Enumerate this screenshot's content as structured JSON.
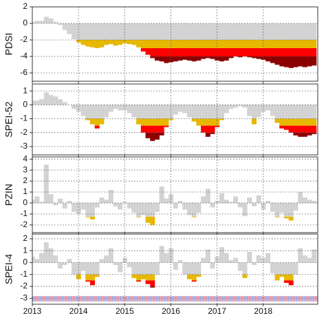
{
  "chart_data": [
    {
      "type": "bar",
      "ylabel": "PDSI",
      "x": [
        2013.0,
        2013.1,
        2013.2,
        2013.3,
        2013.4,
        2013.5,
        2013.6,
        2013.7,
        2013.8,
        2013.9,
        2014.0,
        2014.1,
        2014.2,
        2014.3,
        2014.4,
        2014.5,
        2014.6,
        2014.7,
        2014.8,
        2014.9,
        2015.0,
        2015.1,
        2015.2,
        2015.3,
        2015.4,
        2015.5,
        2015.6,
        2015.7,
        2015.8,
        2015.9,
        2016.0,
        2016.1,
        2016.2,
        2016.3,
        2016.4,
        2016.5,
        2016.6,
        2016.7,
        2016.8,
        2016.9,
        2017.0,
        2017.1,
        2017.2,
        2017.3,
        2017.4,
        2017.5,
        2017.6,
        2017.7,
        2017.8,
        2017.9,
        2018.0,
        2018.1,
        2018.2,
        2018.3,
        2018.4,
        2018.5,
        2018.6,
        2018.7,
        2018.8,
        2018.9,
        2019.0,
        2019.1
      ],
      "values": [
        0.2,
        0.3,
        0.3,
        0.8,
        0.6,
        0.2,
        -0.2,
        -0.8,
        -1.3,
        -1.9,
        -2.3,
        -2.6,
        -2.8,
        -2.9,
        -3.0,
        -2.9,
        -2.6,
        -2.5,
        -2.7,
        -2.6,
        -2.4,
        -2.5,
        -2.6,
        -2.9,
        -3.4,
        -3.8,
        -4.2,
        -4.5,
        -4.6,
        -4.8,
        -4.7,
        -4.6,
        -4.5,
        -4.4,
        -4.5,
        -4.6,
        -4.5,
        -4.3,
        -4.2,
        -4.3,
        -4.5,
        -4.6,
        -4.5,
        -4.2,
        -4.0,
        -4.1,
        -4.0,
        -4.1,
        -4.2,
        -4.3,
        -4.4,
        -4.6,
        -4.8,
        -5.0,
        -5.2,
        -5.3,
        -5.4,
        -5.3,
        -5.2,
        -5.3,
        -5.2,
        -5.1
      ],
      "levels": [
        -2,
        -3,
        -4
      ],
      "colors": [
        "#d3d3d3",
        "#e8b800",
        "#ff0000",
        "#8b0000"
      ],
      "xlim": [
        2013,
        2019.18
      ],
      "xticks": [
        2013,
        2014,
        2015,
        2016,
        2017,
        2018
      ],
      "ylim": [
        -7,
        2
      ],
      "yticks": [
        2,
        0,
        -2,
        -4,
        -6
      ],
      "grid": true
    },
    {
      "type": "bar",
      "ylabel": "SPEI-52",
      "x": [
        2013.0,
        2013.1,
        2013.2,
        2013.3,
        2013.4,
        2013.5,
        2013.6,
        2013.7,
        2013.8,
        2013.9,
        2014.0,
        2014.1,
        2014.2,
        2014.3,
        2014.4,
        2014.5,
        2014.6,
        2014.7,
        2014.8,
        2014.9,
        2015.0,
        2015.1,
        2015.2,
        2015.3,
        2015.4,
        2015.5,
        2015.6,
        2015.7,
        2015.8,
        2015.9,
        2016.0,
        2016.1,
        2016.2,
        2016.3,
        2016.4,
        2016.5,
        2016.6,
        2016.7,
        2016.8,
        2016.9,
        2017.0,
        2017.1,
        2017.2,
        2017.3,
        2017.4,
        2017.5,
        2017.6,
        2017.7,
        2017.8,
        2017.9,
        2018.0,
        2018.1,
        2018.2,
        2018.3,
        2018.4,
        2018.5,
        2018.6,
        2018.7,
        2018.8,
        2018.9,
        2019.0,
        2019.1
      ],
      "values": [
        0.3,
        0.3,
        0.4,
        0.9,
        0.7,
        0.6,
        0.4,
        0.2,
        0.0,
        -0.3,
        -0.5,
        -0.8,
        -1.1,
        -1.4,
        -1.7,
        -1.4,
        -0.9,
        -0.5,
        -0.3,
        -0.4,
        -0.4,
        -0.6,
        -0.9,
        -1.4,
        -2.0,
        -2.4,
        -2.6,
        -2.5,
        -2.2,
        -1.6,
        -1.1,
        -0.7,
        -0.5,
        -0.6,
        -0.9,
        -1.2,
        -1.5,
        -2.0,
        -2.3,
        -2.1,
        -1.6,
        -1.1,
        -0.6,
        -0.3,
        -0.2,
        -0.1,
        -0.2,
        -0.8,
        -1.4,
        -0.9,
        -0.5,
        -0.4,
        -0.8,
        -1.3,
        -1.7,
        -1.8,
        -2.0,
        -2.2,
        -2.3,
        -2.3,
        -2.2,
        -2.1
      ],
      "levels": [
        -1,
        -1.5,
        -2
      ],
      "colors": [
        "#d3d3d3",
        "#e8b800",
        "#ff0000",
        "#8b0000"
      ],
      "xlim": [
        2013,
        2019.18
      ],
      "xticks": [
        2013,
        2014,
        2015,
        2016,
        2017,
        2018
      ],
      "ylim": [
        -3.6,
        1.5
      ],
      "yticks": [
        1,
        0,
        -1,
        -2,
        -3
      ],
      "grid": true
    },
    {
      "type": "bar",
      "ylabel": "PZIN",
      "x": [
        2013.0,
        2013.1,
        2013.2,
        2013.3,
        2013.4,
        2013.5,
        2013.6,
        2013.7,
        2013.8,
        2013.9,
        2014.0,
        2014.1,
        2014.2,
        2014.3,
        2014.4,
        2014.5,
        2014.6,
        2014.7,
        2014.8,
        2014.9,
        2015.0,
        2015.1,
        2015.2,
        2015.3,
        2015.4,
        2015.5,
        2015.6,
        2015.7,
        2015.8,
        2015.9,
        2016.0,
        2016.1,
        2016.2,
        2016.3,
        2016.4,
        2016.5,
        2016.6,
        2016.7,
        2016.8,
        2016.9,
        2017.0,
        2017.1,
        2017.2,
        2017.3,
        2017.4,
        2017.5,
        2017.6,
        2017.7,
        2017.8,
        2017.9,
        2018.0,
        2018.1,
        2018.2,
        2018.3,
        2018.4,
        2018.5,
        2018.6,
        2018.7,
        2018.8,
        2018.9,
        2019.0,
        2019.1
      ],
      "values": [
        0.3,
        0.6,
        0.1,
        3.5,
        0.8,
        -0.2,
        0.4,
        -0.5,
        0.2,
        -0.8,
        -1.0,
        -0.6,
        -1.3,
        -1.5,
        -0.4,
        0.5,
        0.3,
        1.2,
        -0.3,
        -0.6,
        0.1,
        -0.5,
        -0.9,
        -1.3,
        -1.1,
        -1.8,
        -2.0,
        -0.8,
        1.5,
        0.4,
        0.8,
        -0.5,
        0.2,
        -0.6,
        -1.1,
        -1.3,
        -0.9,
        0.6,
        1.3,
        -0.4,
        0.2,
        0.9,
        0.3,
        0.1,
        0.6,
        -0.4,
        -1.2,
        0.5,
        -0.3,
        0.7,
        -0.6,
        0.2,
        -0.8,
        -1.3,
        -0.9,
        -1.4,
        -1.6,
        -0.7,
        1.0,
        0.5,
        0.3,
        0.2
      ],
      "levels": [
        -1.25,
        -2,
        -2.75
      ],
      "colors": [
        "#d3d3d3",
        "#e8b800",
        "#ff0000",
        "#8b0000"
      ],
      "xlim": [
        2013,
        2019.18
      ],
      "xticks": [
        2013,
        2014,
        2015,
        2016,
        2017,
        2018
      ],
      "ylim": [
        -2.7,
        4.2
      ],
      "yticks": [
        4,
        3,
        2,
        1,
        0,
        -1,
        -2
      ],
      "grid": true
    },
    {
      "type": "bar",
      "ylabel": "SPEI-4",
      "x": [
        2013.0,
        2013.1,
        2013.2,
        2013.3,
        2013.4,
        2013.5,
        2013.6,
        2013.7,
        2013.8,
        2013.9,
        2014.0,
        2014.1,
        2014.2,
        2014.3,
        2014.4,
        2014.5,
        2014.6,
        2014.7,
        2014.8,
        2014.9,
        2015.0,
        2015.1,
        2015.2,
        2015.3,
        2015.4,
        2015.5,
        2015.6,
        2015.7,
        2015.8,
        2015.9,
        2016.0,
        2016.1,
        2016.2,
        2016.3,
        2016.4,
        2016.5,
        2016.6,
        2016.7,
        2016.8,
        2016.9,
        2017.0,
        2017.1,
        2017.2,
        2017.3,
        2017.4,
        2017.5,
        2017.6,
        2017.7,
        2017.8,
        2017.9,
        2018.0,
        2018.1,
        2018.2,
        2018.3,
        2018.4,
        2018.5,
        2018.6,
        2018.7,
        2018.8,
        2018.9,
        2019.0,
        2019.1
      ],
      "values": [
        0.5,
        0.3,
        0.8,
        1.7,
        1.2,
        0.6,
        -0.5,
        -0.2,
        0.3,
        -1.0,
        -1.4,
        -0.7,
        -1.6,
        -1.9,
        -1.2,
        0.3,
        0.6,
        1.2,
        -0.2,
        -0.8,
        0.4,
        -0.4,
        -1.3,
        -1.6,
        -1.4,
        -1.8,
        -2.1,
        -1.0,
        1.4,
        0.8,
        1.2,
        -0.6,
        0.2,
        -1.0,
        -1.4,
        -1.6,
        -1.2,
        0.4,
        1.1,
        -0.5,
        0.5,
        1.3,
        0.8,
        0.2,
        0.4,
        -0.7,
        -1.3,
        0.9,
        -0.2,
        0.6,
        0.4,
        0.8,
        -0.9,
        -1.5,
        -1.2,
        -1.7,
        -1.9,
        -1.0,
        1.2,
        0.6,
        0.4,
        1.1
      ],
      "levels": [
        -1,
        -1.5,
        -2
      ],
      "colors": [
        "#d3d3d3",
        "#e8b800",
        "#ff0000",
        "#8b0000"
      ],
      "xlim": [
        2013,
        2019.18
      ],
      "xticks": [
        2013,
        2014,
        2015,
        2016,
        2017,
        2018
      ],
      "ylim": [
        -3.5,
        2.4
      ],
      "yticks": [
        2,
        1,
        0,
        -1,
        -2,
        -3
      ],
      "grid": true
    }
  ]
}
